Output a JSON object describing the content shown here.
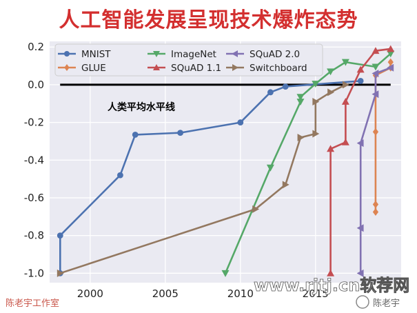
{
  "title": "人工智能发展呈现技术爆炸态势",
  "watermarks": {
    "left": "陈老宇工作室",
    "url": "www.rjtj.cn软荐网",
    "wechat": "陈老宇"
  },
  "chart_data": {
    "type": "line",
    "title": "人工智能发展呈现技术爆炸态势",
    "xlabel": "",
    "ylabel": "",
    "xlim": [
      1997.3,
      2020.7
    ],
    "ylim": [
      -1.05,
      0.23
    ],
    "xticks": [
      2000,
      2005,
      2010,
      2015
    ],
    "yticks": [
      -1.0,
      -0.8,
      -0.6,
      -0.4,
      -0.2,
      0.0,
      0.2
    ],
    "grid": true,
    "legend_position": "top-left",
    "baseline": {
      "y": 0.0,
      "label": "人类平均水平线",
      "x_start": 1998,
      "x_end": 2020
    },
    "series": [
      {
        "name": "MNIST",
        "color": "#4c72b0",
        "marker": "circle",
        "x": [
          1998,
          1998,
          2002,
          2003,
          2006,
          2010,
          2012,
          2013,
          2018
        ],
        "y": [
          -1.0,
          -0.8,
          -0.48,
          -0.265,
          -0.255,
          -0.2,
          -0.04,
          -0.01,
          0.02
        ]
      },
      {
        "name": "GLUE",
        "color": "#dd8452",
        "marker": "diamond",
        "x": [
          2019,
          2019,
          2019,
          2019,
          2020,
          2020
        ],
        "y": [
          -0.675,
          -0.635,
          -0.25,
          0.05,
          0.09,
          0.12
        ]
      },
      {
        "name": "ImageNet",
        "color": "#55a868",
        "marker": "triangle-down",
        "x": [
          2009,
          2012,
          2014,
          2014,
          2015,
          2016,
          2017,
          2019,
          2020
        ],
        "y": [
          -1.0,
          -0.44,
          -0.09,
          -0.065,
          0.005,
          0.07,
          0.12,
          0.095,
          0.165
        ]
      },
      {
        "name": "SQuAD 1.1",
        "color": "#c44e52",
        "marker": "triangle-up",
        "x": [
          2016,
          2016,
          2017,
          2017,
          2018,
          2019,
          2020
        ],
        "y": [
          -1.0,
          -0.34,
          -0.305,
          -0.09,
          0.08,
          0.18,
          0.19
        ]
      },
      {
        "name": "SQuAD 2.0",
        "color": "#8172b2",
        "marker": "triangle-left",
        "x": [
          2018,
          2018,
          2018,
          2019,
          2019,
          2020
        ],
        "y": [
          -1.0,
          -0.76,
          -0.31,
          -0.05,
          0.06,
          0.09
        ]
      },
      {
        "name": "Switchboard",
        "color": "#937860",
        "marker": "triangle-right",
        "x": [
          1998,
          2011,
          2013,
          2014,
          2015,
          2015,
          2016,
          2017
        ],
        "y": [
          -1.0,
          -0.66,
          -0.53,
          -0.28,
          -0.26,
          -0.09,
          -0.04,
          0.0
        ]
      }
    ]
  }
}
